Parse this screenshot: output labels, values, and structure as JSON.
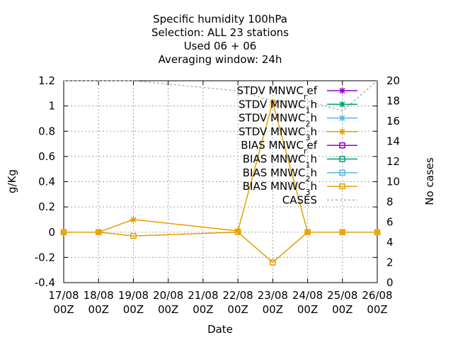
{
  "chart_data": {
    "type": "line",
    "title": [
      "Specific humidity 100hPa",
      "Selection: ALL      23 stations",
      "Used  06 + 06",
      "Averaging window: 24h"
    ],
    "xlabel": "Date",
    "ylabel": "g/Kg",
    "y2label": "No cases",
    "x_ticks": [
      {
        "date": "17/08",
        "hour": "00Z"
      },
      {
        "date": "18/08",
        "hour": "00Z"
      },
      {
        "date": "19/08",
        "hour": "00Z"
      },
      {
        "date": "20/08",
        "hour": "00Z"
      },
      {
        "date": "21/08",
        "hour": "00Z"
      },
      {
        "date": "22/08",
        "hour": "00Z"
      },
      {
        "date": "23/08",
        "hour": "00Z"
      },
      {
        "date": "24/08",
        "hour": "00Z"
      },
      {
        "date": "25/08",
        "hour": "00Z"
      },
      {
        "date": "26/08",
        "hour": "00Z"
      }
    ],
    "xlim": [
      0,
      9
    ],
    "ylim": [
      -0.4,
      1.2
    ],
    "y_ticks": [
      "-0.4",
      "-0.2",
      "0",
      "0.2",
      "0.4",
      "0.6",
      "0.8",
      "1",
      "1.2"
    ],
    "y2lim": [
      0,
      20
    ],
    "y2_ticks": [
      "0",
      "2",
      "4",
      "6",
      "8",
      "10",
      "12",
      "14",
      "16",
      "18",
      "20"
    ],
    "grid": true,
    "legend_position": "top-right",
    "legend": [
      {
        "name": "STDV MNWC",
        "sub": "r",
        "tail": "ef",
        "color": "#9400d3",
        "marker": "x"
      },
      {
        "name": "STDV MNWC",
        "sub": "1",
        "tail": "h",
        "color": "#009e73",
        "marker": "x"
      },
      {
        "name": "STDV MNWC",
        "sub": "2",
        "tail": "h",
        "color": "#56b4e9",
        "marker": "x"
      },
      {
        "name": "STDV MNWC",
        "sub": "3",
        "tail": "h",
        "color": "#e69f00",
        "marker": "x"
      },
      {
        "name": "BIAS MNWC",
        "sub": "r",
        "tail": "ef",
        "color": "#9400d3",
        "marker": "square"
      },
      {
        "name": "BIAS MNWC",
        "sub": "1",
        "tail": "h",
        "color": "#009e73",
        "marker": "square"
      },
      {
        "name": "BIAS MNWC",
        "sub": "2",
        "tail": "h",
        "color": "#56b4e9",
        "marker": "square"
      },
      {
        "name": "BIAS MNWC",
        "sub": "3",
        "tail": "h",
        "color": "#e69f00",
        "marker": "square"
      },
      {
        "name": "CASES",
        "sub": "",
        "tail": "",
        "color": "#a0a0a0",
        "marker": "dashed"
      }
    ],
    "series": [
      {
        "name": "STDV MNWC3h",
        "axis": "y",
        "color": "#e69f00",
        "marker": "x",
        "x": [
          0,
          1,
          2,
          5,
          6,
          7,
          8,
          9
        ],
        "y": [
          0,
          0,
          0.1,
          0.01,
          1.03,
          0,
          0,
          0
        ]
      },
      {
        "name": "BIAS MNWC3h",
        "axis": "y",
        "color": "#e69f00",
        "marker": "square",
        "x": [
          0,
          1,
          2,
          5,
          6,
          7,
          8,
          9
        ],
        "y": [
          0,
          0,
          -0.03,
          0,
          -0.24,
          0,
          0,
          0
        ]
      },
      {
        "name": "CASES",
        "axis": "y2",
        "color": "#a0a0a0",
        "marker": "dashed",
        "x": [
          0,
          1,
          2,
          5,
          6,
          7,
          8,
          9
        ],
        "y": [
          20,
          20,
          20,
          19,
          18,
          18,
          17,
          20
        ]
      }
    ]
  }
}
